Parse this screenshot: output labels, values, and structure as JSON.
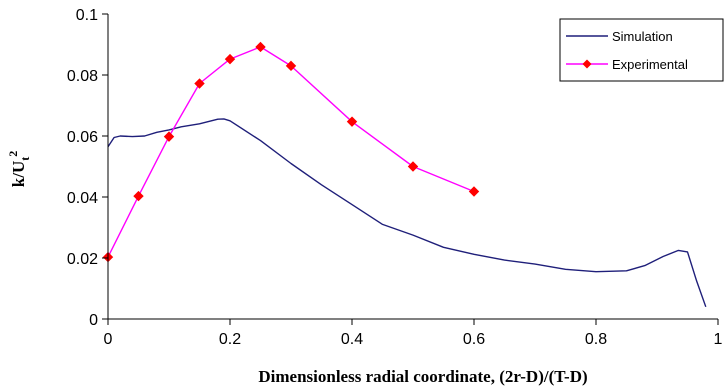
{
  "chart_data": {
    "type": "line",
    "xlabel": "Dimensionless radial coordinate, (2r-D)/(T-D)",
    "ylabel": {
      "base": "k/U",
      "sub": "t",
      "sup": "2"
    },
    "xlim": [
      0,
      1
    ],
    "ylim": [
      0,
      0.1
    ],
    "xticks": [
      {
        "value": 0,
        "label": "0"
      },
      {
        "value": 0.2,
        "label": "0.2"
      },
      {
        "value": 0.4,
        "label": "0.4"
      },
      {
        "value": 0.6,
        "label": "0.6"
      },
      {
        "value": 0.8,
        "label": "0.8"
      },
      {
        "value": 1,
        "label": "1"
      }
    ],
    "yticks": [
      {
        "value": 0,
        "label": "0"
      },
      {
        "value": 0.02,
        "label": "0.02"
      },
      {
        "value": 0.04,
        "label": "0.04"
      },
      {
        "value": 0.06,
        "label": "0.06"
      },
      {
        "value": 0.08,
        "label": "0.08"
      },
      {
        "value": 0.1,
        "label": "0.1"
      }
    ],
    "grid": false,
    "legend": {
      "position": "top-right",
      "visible": true
    },
    "series": [
      {
        "name": "Simulation",
        "color": "#1f1f7a",
        "marker": "none",
        "x": [
          0,
          0.01,
          0.02,
          0.04,
          0.06,
          0.08,
          0.1,
          0.12,
          0.15,
          0.18,
          0.19,
          0.2,
          0.25,
          0.3,
          0.35,
          0.4,
          0.45,
          0.5,
          0.55,
          0.6,
          0.65,
          0.7,
          0.75,
          0.8,
          0.85,
          0.88,
          0.91,
          0.935,
          0.95,
          0.965,
          0.98
        ],
        "y": [
          0.0565,
          0.0595,
          0.06,
          0.0598,
          0.06,
          0.0612,
          0.062,
          0.063,
          0.064,
          0.0655,
          0.0656,
          0.065,
          0.0585,
          0.051,
          0.044,
          0.0375,
          0.031,
          0.0275,
          0.0235,
          0.0212,
          0.0193,
          0.018,
          0.0163,
          0.0155,
          0.0158,
          0.0175,
          0.0205,
          0.0225,
          0.022,
          0.0125,
          0.004
        ]
      },
      {
        "name": "Experimental",
        "color": "#ff00ff",
        "marker": "diamond",
        "marker_color": "#ff0000",
        "x": [
          0,
          0.05,
          0.1,
          0.15,
          0.2,
          0.25,
          0.3,
          0.4,
          0.5,
          0.6
        ],
        "y": [
          0.0203,
          0.0403,
          0.0598,
          0.0772,
          0.0852,
          0.0892,
          0.083,
          0.0647,
          0.05,
          0.0418
        ]
      }
    ]
  }
}
